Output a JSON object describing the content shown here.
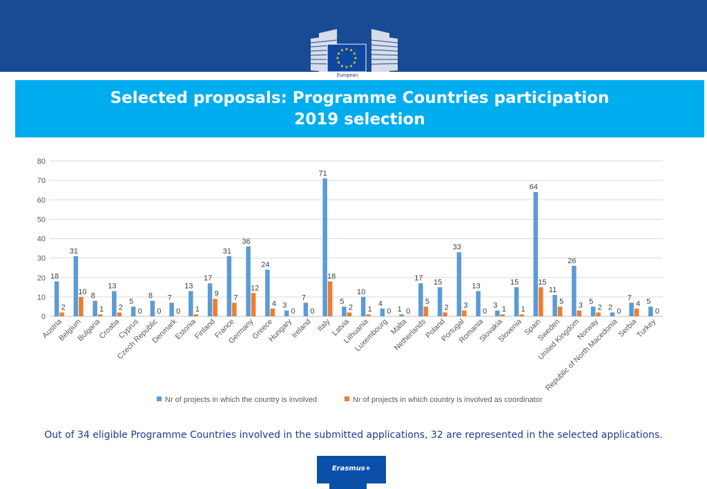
{
  "header": {
    "logo_label": "European",
    "title_line1": "Selected proposals: Programme Countries participation",
    "title_line2": "2019 selection"
  },
  "footer": {
    "note": "Out of 34 eligible Programme Countries involved in the submitted applications, 32 are represented in the selected applications.",
    "badge": "Erasmus+"
  },
  "colors": {
    "brand_dark": "#194a94",
    "title_bar": "#00aeef",
    "series1": "#5b9bd5",
    "series2": "#ed7d31"
  },
  "chart_data": {
    "type": "bar",
    "ylim": [
      0,
      80
    ],
    "yticks": [
      0,
      10,
      20,
      30,
      40,
      50,
      60,
      70,
      80
    ],
    "grid": true,
    "legend_position": "bottom",
    "categories": [
      "Austria",
      "Belgium",
      "Bulgaria",
      "Croatia",
      "Cyprus",
      "Czech Republic",
      "Denmark",
      "Estonia",
      "Finland",
      "France",
      "Germany",
      "Greece",
      "Hungary",
      "Ireland",
      "Italy",
      "Latvia",
      "Lithuania",
      "Luxembourg",
      "Malta",
      "Netherlands",
      "Poland",
      "Portugal",
      "Romania",
      "Slovakia",
      "Slovenia",
      "Spain",
      "Sweden",
      "United Kingdom",
      "Norway",
      "Republic of North Macedonia",
      "Serbia",
      "Turkey"
    ],
    "series": [
      {
        "name": "Nr of projects in which the country is involved",
        "color": "#5b9bd5",
        "values": [
          18,
          31,
          8,
          13,
          5,
          8,
          7,
          13,
          17,
          31,
          36,
          24,
          3,
          7,
          71,
          5,
          10,
          4,
          1,
          17,
          15,
          33,
          13,
          3,
          15,
          64,
          11,
          26,
          5,
          2,
          7,
          5
        ]
      },
      {
        "name": "Nr of projects in which country is involved as coordinator",
        "color": "#ed7d31",
        "values": [
          2,
          10,
          1,
          2,
          0,
          0,
          0,
          1,
          9,
          7,
          12,
          4,
          0,
          0,
          18,
          2,
          1,
          0,
          0,
          5,
          2,
          3,
          0,
          1,
          1,
          15,
          5,
          3,
          2,
          0,
          4,
          0
        ]
      }
    ]
  }
}
